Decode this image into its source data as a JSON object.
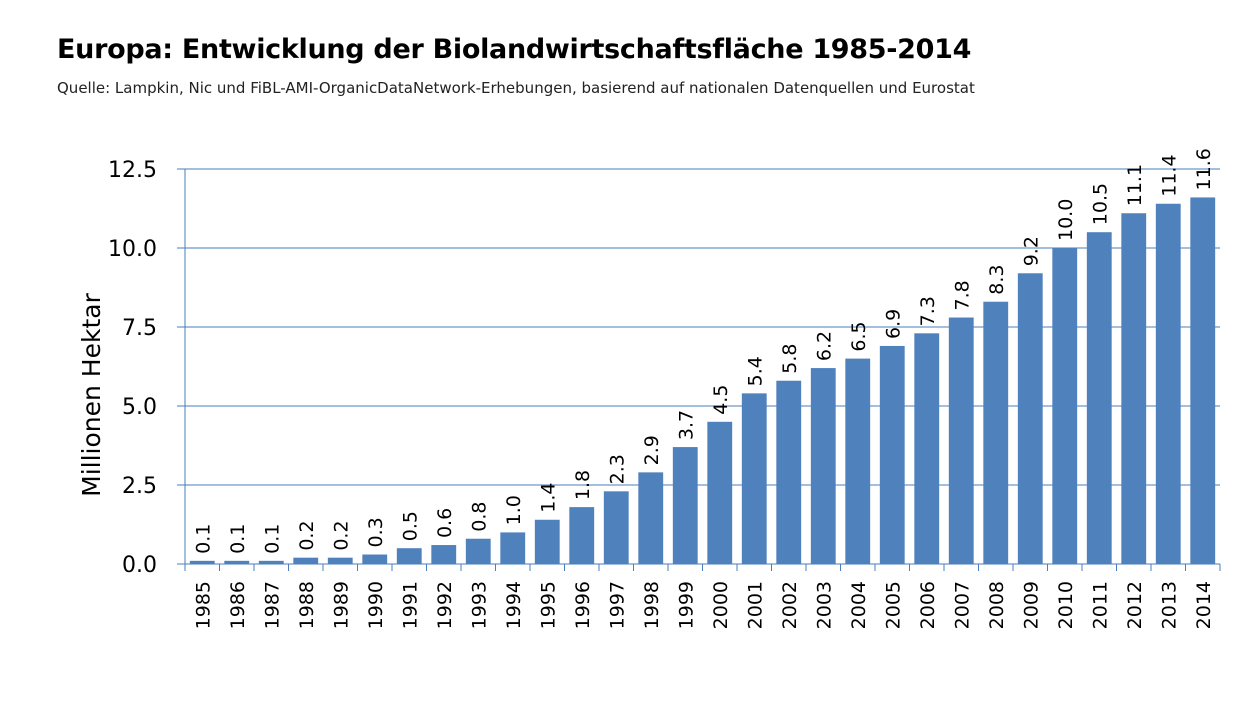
{
  "header": {
    "title": "Europa: Entwicklung der Biolandwirtschaftsfläche 1985-2014",
    "source": "Quelle: Lampkin, Nic und FiBL-AMI-OrganicDataNetwork-Erhebungen, basierend auf nationalen Datenquellen und Eurostat"
  },
  "chart_data": {
    "type": "bar",
    "title": "Europa: Entwicklung der Biolandwirtschaftsfläche 1985-2014",
    "ylabel": "Millionen Hektar",
    "xlabel": "",
    "ylim": [
      0,
      12.5
    ],
    "yticks": [
      "0.0",
      "2.5",
      "5.0",
      "7.5",
      "10.0",
      "12.5"
    ],
    "grid": true,
    "bar_color": "#4f81bd",
    "categories": [
      "1985",
      "1986",
      "1987",
      "1988",
      "1989",
      "1990",
      "1991",
      "1992",
      "1993",
      "1994",
      "1995",
      "1996",
      "1997",
      "1998",
      "1999",
      "2000",
      "2001",
      "2002",
      "2003",
      "2004",
      "2005",
      "2006",
      "2007",
      "2008",
      "2009",
      "2010",
      "2011",
      "2012",
      "2013",
      "2014"
    ],
    "values": [
      0.1,
      0.1,
      0.1,
      0.2,
      0.2,
      0.3,
      0.5,
      0.6,
      0.8,
      1.0,
      1.4,
      1.8,
      2.3,
      2.9,
      3.7,
      4.5,
      5.4,
      5.8,
      6.2,
      6.5,
      6.9,
      7.3,
      7.8,
      8.3,
      9.2,
      10.0,
      10.5,
      11.1,
      11.4,
      11.6
    ],
    "labels": [
      "0.1",
      "0.1",
      "0.1",
      "0.2",
      "0.2",
      "0.3",
      "0.5",
      "0.6",
      "0.8",
      "1.0",
      "1.4",
      "1.8",
      "2.3",
      "2.9",
      "3.7",
      "4.5",
      "5.4",
      "5.8",
      "6.2",
      "6.5",
      "6.9",
      "7.3",
      "7.8",
      "8.3",
      "9.2",
      "10.0",
      "10.5",
      "11.1",
      "11.4",
      "11.6"
    ]
  }
}
